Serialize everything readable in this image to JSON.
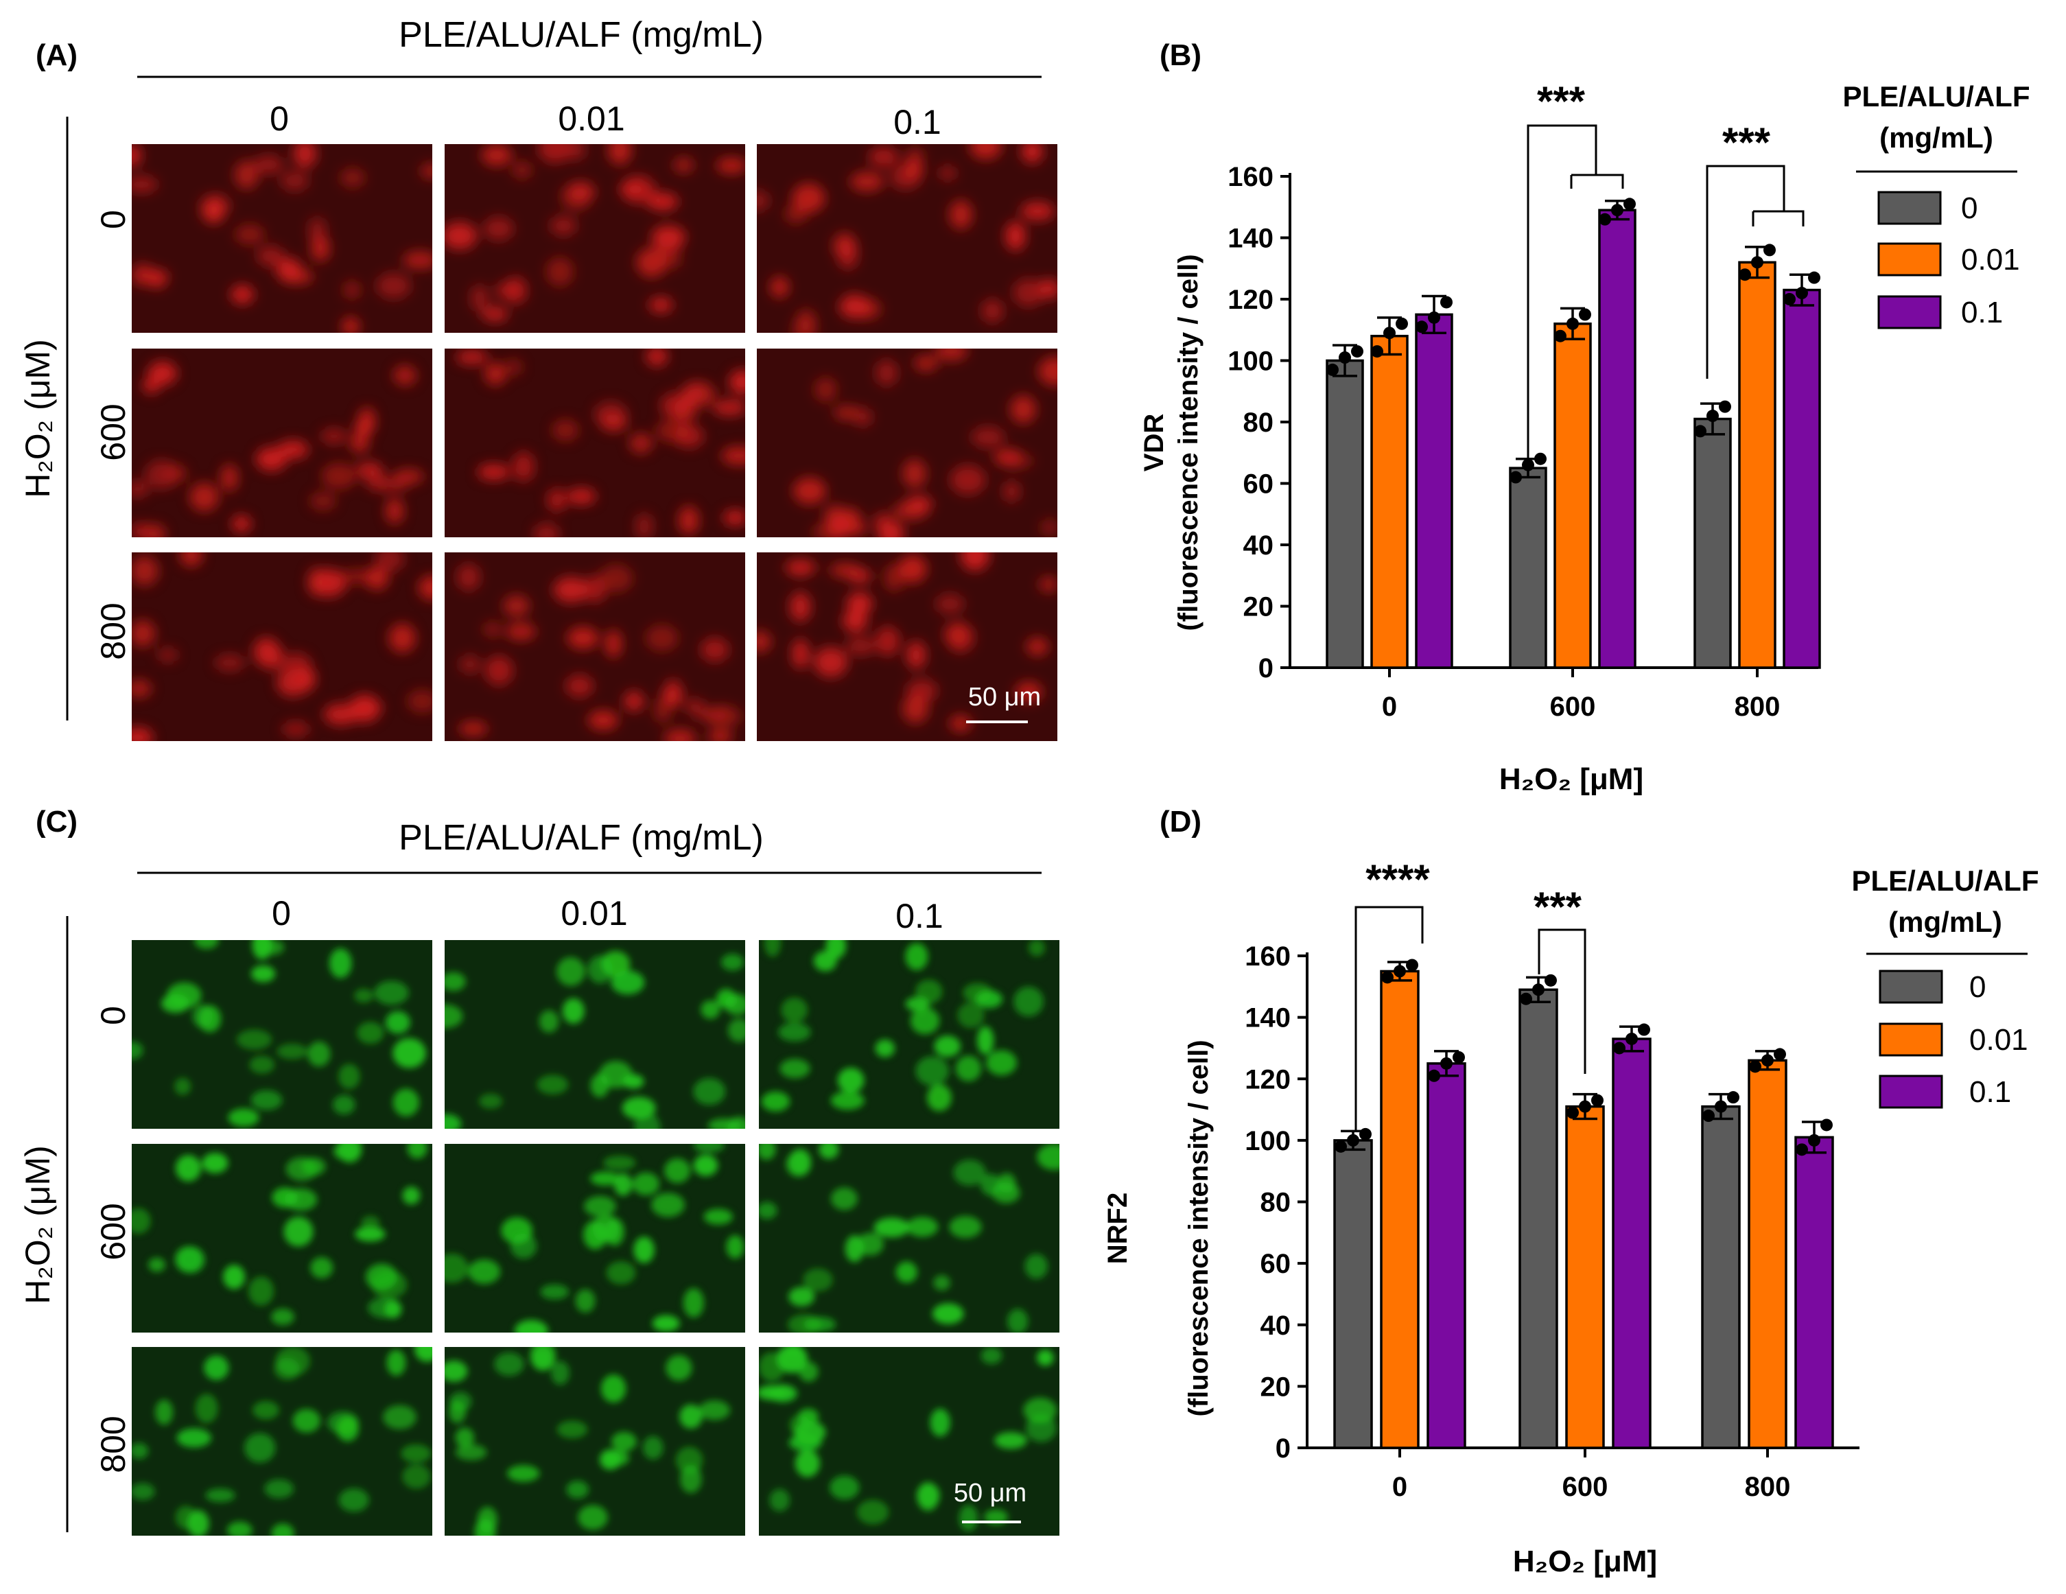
{
  "panels": {
    "A": {
      "label": "(A)",
      "header": "PLE/ALU/ALF (mg/mL)",
      "columns": [
        "0",
        "0.01",
        "0.1"
      ],
      "rows": [
        "0",
        "600",
        "800"
      ],
      "row_axis": "H₂O₂ (μM)",
      "scale_bar": "50 μm",
      "stain_color": "#d0201c"
    },
    "B": {
      "label": "(B)"
    },
    "C": {
      "label": "(C)",
      "header": "PLE/ALU/ALF (mg/mL)",
      "columns": [
        "0",
        "0.01",
        "0.1"
      ],
      "rows": [
        "0",
        "600",
        "800"
      ],
      "row_axis": "H₂O₂ (μM)",
      "scale_bar": "50 μm",
      "stain_color": "#22c41c"
    },
    "D": {
      "label": "(D)"
    }
  },
  "colors": {
    "series_0": "#5b5b5b",
    "series_001": "#ff7300",
    "series_01": "#7a0aa0"
  },
  "chart_data": [
    {
      "panel": "B",
      "type": "bar",
      "ylabel_line1": "VDR",
      "ylabel_line2": "(fluorescence intensity / cell)",
      "xlabel": "H₂O₂ [μM]",
      "legend_title_line1": "PLE/ALU/ALF",
      "legend_title_line2": "(mg/mL)",
      "legend_position": "top-right",
      "categories": [
        "0",
        "600",
        "800"
      ],
      "ylim": [
        0,
        160
      ],
      "yticks": [
        "0",
        "20",
        "40",
        "60",
        "80",
        "100",
        "120",
        "140",
        "160"
      ],
      "series": [
        {
          "name": "0",
          "values": [
            100,
            65,
            81
          ],
          "errors": [
            5,
            3,
            5
          ],
          "points": [
            [
              97,
              101,
              103
            ],
            [
              62,
              66,
              68
            ],
            [
              77,
              82,
              85
            ]
          ]
        },
        {
          "name": "0.01",
          "values": [
            108,
            112,
            132
          ],
          "errors": [
            6,
            5,
            5
          ],
          "points": [
            [
              103,
              109,
              112
            ],
            [
              108,
              112,
              115
            ],
            [
              128,
              132,
              136
            ]
          ]
        },
        {
          "name": "0.1",
          "values": [
            115,
            149,
            123
          ],
          "errors": [
            6,
            3,
            5
          ],
          "points": [
            [
              111,
              114,
              119
            ],
            [
              146,
              149,
              151
            ],
            [
              120,
              122,
              127
            ]
          ]
        }
      ],
      "significance": [
        {
          "text": "***",
          "group": 1
        },
        {
          "text": "***",
          "group": 2
        }
      ]
    },
    {
      "panel": "D",
      "type": "bar",
      "ylabel_line1": "NRF2",
      "ylabel_line2": "(fluorescence intensity / cell)",
      "xlabel": "H₂O₂ [μM]",
      "legend_title_line1": "PLE/ALU/ALF",
      "legend_title_line2": "(mg/mL)",
      "legend_position": "top-right",
      "categories": [
        "0",
        "600",
        "800"
      ],
      "ylim": [
        0,
        160
      ],
      "yticks": [
        "0",
        "20",
        "40",
        "60",
        "80",
        "100",
        "120",
        "140",
        "160"
      ],
      "series": [
        {
          "name": "0",
          "values": [
            100,
            149,
            111
          ],
          "errors": [
            3,
            4,
            4
          ],
          "points": [
            [
              98,
              100,
              102
            ],
            [
              146,
              149,
              152
            ],
            [
              108,
              111,
              114
            ]
          ]
        },
        {
          "name": "0.01",
          "values": [
            155,
            111,
            126
          ],
          "errors": [
            3,
            4,
            3
          ],
          "points": [
            [
              153,
              155,
              157
            ],
            [
              109,
              111,
              113
            ],
            [
              124,
              126,
              128
            ]
          ]
        },
        {
          "name": "0.1",
          "values": [
            125,
            133,
            101
          ],
          "errors": [
            4,
            4,
            5
          ],
          "points": [
            [
              121,
              125,
              127
            ],
            [
              130,
              133,
              136
            ],
            [
              97,
              100,
              105
            ]
          ]
        }
      ],
      "significance": [
        {
          "text": "****",
          "group": 0
        },
        {
          "text": "***",
          "group": 1
        }
      ]
    }
  ]
}
